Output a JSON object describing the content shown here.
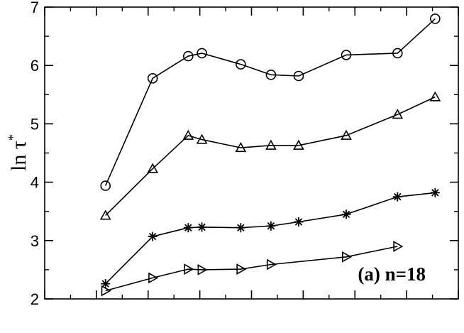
{
  "chart_data": {
    "type": "line",
    "title": "",
    "xlabel": "",
    "ylabel": "ln τ",
    "ylabel_superscript": "*",
    "annotation": "(a) n=18",
    "ylim": [
      2,
      7
    ],
    "xlim": [
      0,
      1
    ],
    "yticks": [
      2,
      3,
      4,
      5,
      6,
      7
    ],
    "grid": false,
    "series": [
      {
        "marker": "circle",
        "x": [
          0.147,
          0.261,
          0.347,
          0.38,
          0.474,
          0.547,
          0.614,
          0.729,
          0.853,
          0.944
        ],
        "y": [
          3.94,
          5.78,
          6.16,
          6.21,
          6.02,
          5.84,
          5.82,
          6.18,
          6.21,
          6.8
        ]
      },
      {
        "marker": "triangle-up",
        "x": [
          0.147,
          0.261,
          0.347,
          0.38,
          0.474,
          0.547,
          0.614,
          0.729,
          0.853,
          0.944
        ],
        "y": [
          3.43,
          4.23,
          4.8,
          4.73,
          4.59,
          4.63,
          4.63,
          4.8,
          5.16,
          5.46
        ]
      },
      {
        "marker": "asterisk",
        "x": [
          0.147,
          0.261,
          0.347,
          0.38,
          0.474,
          0.547,
          0.614,
          0.729,
          0.853,
          0.944
        ],
        "y": [
          2.26,
          3.07,
          3.22,
          3.23,
          3.22,
          3.25,
          3.32,
          3.45,
          3.75,
          3.82
        ]
      },
      {
        "marker": "triangle-right",
        "x": [
          0.147,
          0.261,
          0.347,
          0.38,
          0.474,
          0.547,
          0.729,
          0.853
        ],
        "y": [
          2.14,
          2.36,
          2.51,
          2.5,
          2.51,
          2.59,
          2.72,
          2.9
        ]
      }
    ]
  }
}
